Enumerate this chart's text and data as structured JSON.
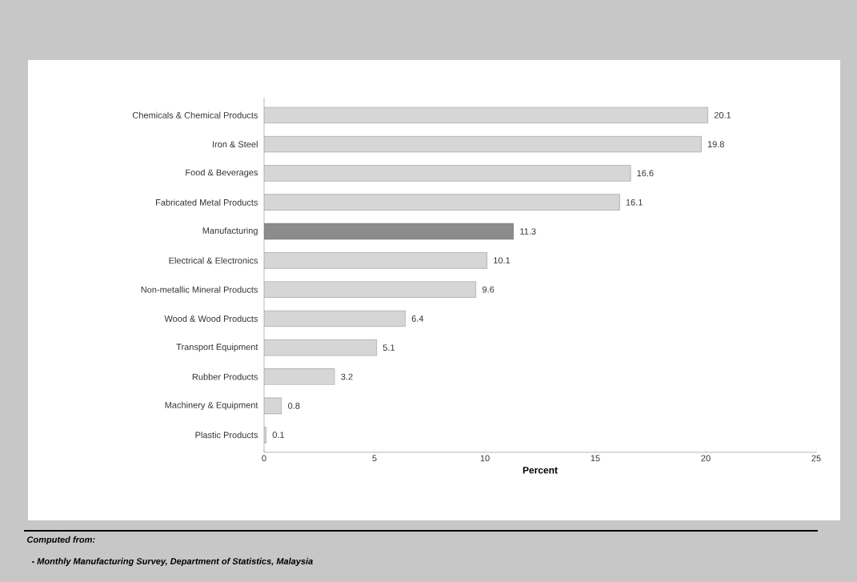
{
  "chart_data": {
    "type": "bar",
    "orientation": "horizontal",
    "categories": [
      "Chemicals & Chemical Products",
      "Iron & Steel",
      "Food & Beverages",
      "Fabricated Metal Products",
      "Manufacturing",
      "Electrical & Electronics",
      "Non-metallic Mineral Products",
      "Wood & Wood Products",
      "Transport Equipment",
      "Rubber Products",
      "Machinery & Equipment",
      "Plastic Products"
    ],
    "values": [
      20.1,
      19.8,
      16.6,
      16.1,
      11.3,
      10.1,
      9.6,
      6.4,
      5.1,
      3.2,
      0.8,
      0.1
    ],
    "colors": [
      "#d6d6d6",
      "#d6d6d6",
      "#d6d6d6",
      "#d6d6d6",
      "#8c8c8c",
      "#d6d6d6",
      "#d6d6d6",
      "#d6d6d6",
      "#d6d6d6",
      "#d6d6d6",
      "#d6d6d6",
      "#d6d6d6"
    ],
    "xlabel": "Percent",
    "xlim": [
      0,
      25
    ],
    "xticks": [
      0,
      5,
      10,
      15,
      20,
      25
    ],
    "data_labels": true,
    "grid": false,
    "annotations": [
      "Computed from:",
      "- Monthly Manufacturing Survey, Department of Statistics, Malaysia"
    ]
  }
}
